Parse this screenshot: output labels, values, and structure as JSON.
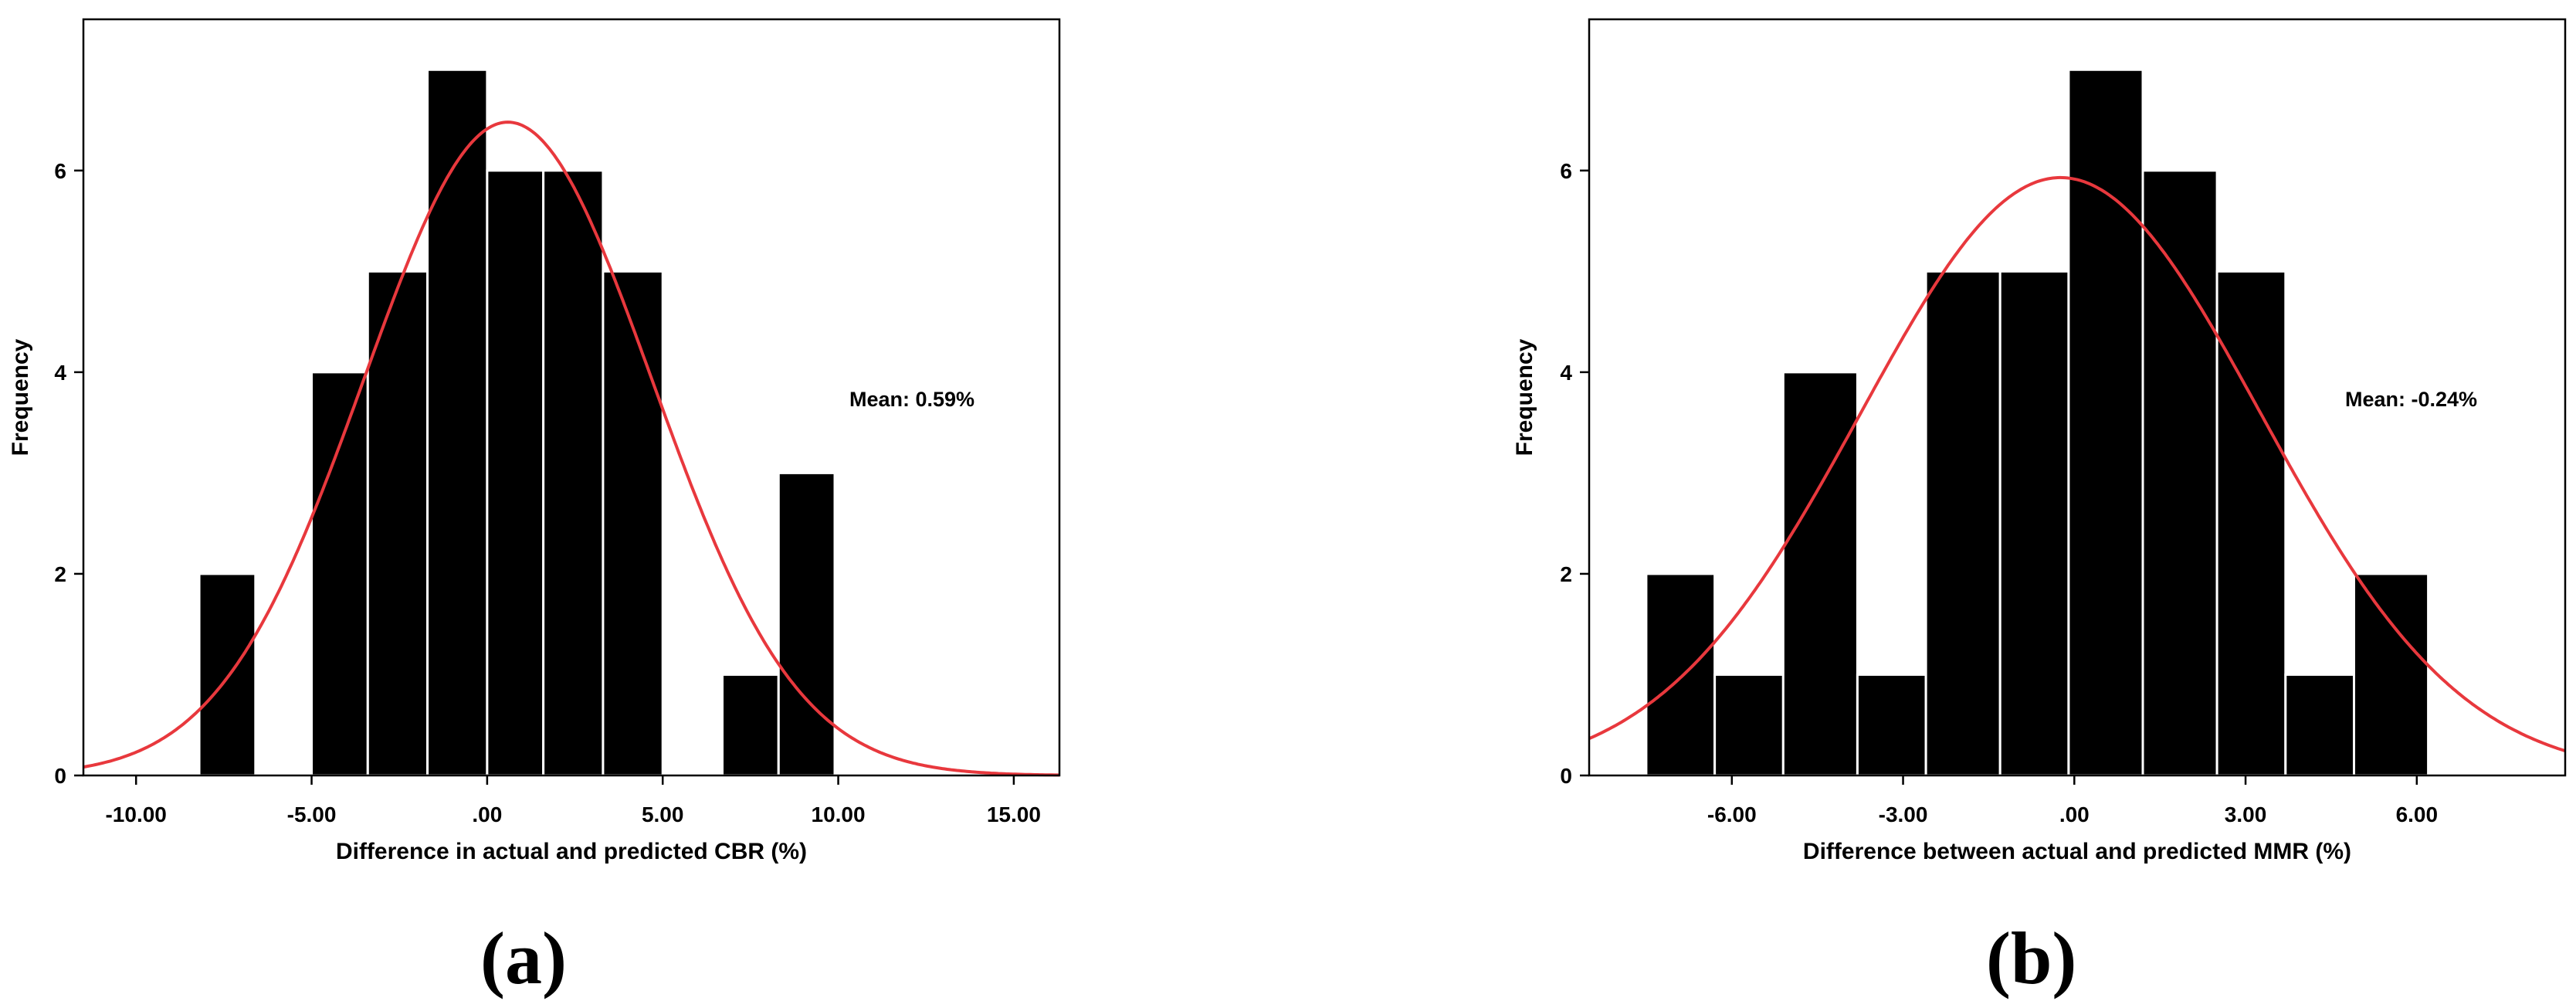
{
  "chart_data": [
    {
      "type": "bar",
      "subtype": "histogram-with-normal-curve",
      "panel_label": "(a)",
      "xlabel": "Difference in actual and predicted CBR (%)",
      "ylabel": "Frequency",
      "annotation": "Mean: 0.59%",
      "xlim": [
        -11.5,
        16.3
      ],
      "ylim": [
        0,
        7.5
      ],
      "xticks": [
        -10,
        -5,
        0,
        5,
        10,
        15
      ],
      "xtick_labels": [
        "-10.00",
        "-5.00",
        ".00",
        "5.00",
        "10.00",
        "15.00"
      ],
      "yticks": [
        0,
        2,
        4,
        6
      ],
      "ytick_labels": [
        "0",
        "2",
        "4",
        "6"
      ],
      "bins": [
        {
          "x0": -8.2,
          "x1": -6.6,
          "count": 2
        },
        {
          "x0": -5.0,
          "x1": -3.4,
          "count": 4
        },
        {
          "x0": -3.4,
          "x1": -1.7,
          "count": 5
        },
        {
          "x0": -1.7,
          "x1": 0.0,
          "count": 7
        },
        {
          "x0": 0.0,
          "x1": 1.6,
          "count": 6
        },
        {
          "x0": 1.6,
          "x1": 3.3,
          "count": 6
        },
        {
          "x0": 3.3,
          "x1": 5.0,
          "count": 5
        },
        {
          "x0": 6.7,
          "x1": 8.3,
          "count": 1
        },
        {
          "x0": 8.3,
          "x1": 9.9,
          "count": 3
        }
      ],
      "normal_curve": {
        "mean": 0.59,
        "sd": 4.1,
        "peak": 6.48,
        "color": "#e8383d"
      },
      "bar_color": "#000000",
      "grid": false,
      "legend": "none"
    },
    {
      "type": "bar",
      "subtype": "histogram-with-normal-curve",
      "panel_label": "(b)",
      "xlabel": "Difference between actual and predicted MMR (%)",
      "ylabel": "Frequency",
      "annotation": "Mean: -0.24%",
      "xlim": [
        -8.5,
        8.6
      ],
      "ylim": [
        0,
        7.5
      ],
      "xticks": [
        -6,
        -3,
        0,
        3,
        6
      ],
      "xtick_labels": [
        "-6.00",
        "-3.00",
        ".00",
        "3.00",
        "6.00"
      ],
      "yticks": [
        0,
        2,
        4,
        6
      ],
      "ytick_labels": [
        "0",
        "2",
        "4",
        "6"
      ],
      "bins": [
        {
          "x0": -7.5,
          "x1": -6.3,
          "count": 2
        },
        {
          "x0": -6.3,
          "x1": -5.1,
          "count": 1
        },
        {
          "x0": -5.1,
          "x1": -3.8,
          "count": 4
        },
        {
          "x0": -3.8,
          "x1": -2.6,
          "count": 1
        },
        {
          "x0": -2.6,
          "x1": -1.3,
          "count": 5
        },
        {
          "x0": -1.3,
          "x1": -0.1,
          "count": 5
        },
        {
          "x0": -0.1,
          "x1": 1.2,
          "count": 7
        },
        {
          "x0": 1.2,
          "x1": 2.5,
          "count": 6
        },
        {
          "x0": 2.5,
          "x1": 3.7,
          "count": 5
        },
        {
          "x0": 3.7,
          "x1": 4.9,
          "count": 1
        },
        {
          "x0": 4.9,
          "x1": 6.2,
          "count": 2
        }
      ],
      "normal_curve": {
        "mean": -0.24,
        "sd": 3.5,
        "peak": 5.93,
        "color": "#e8383d"
      },
      "bar_color": "#000000",
      "grid": false,
      "legend": "none"
    }
  ]
}
